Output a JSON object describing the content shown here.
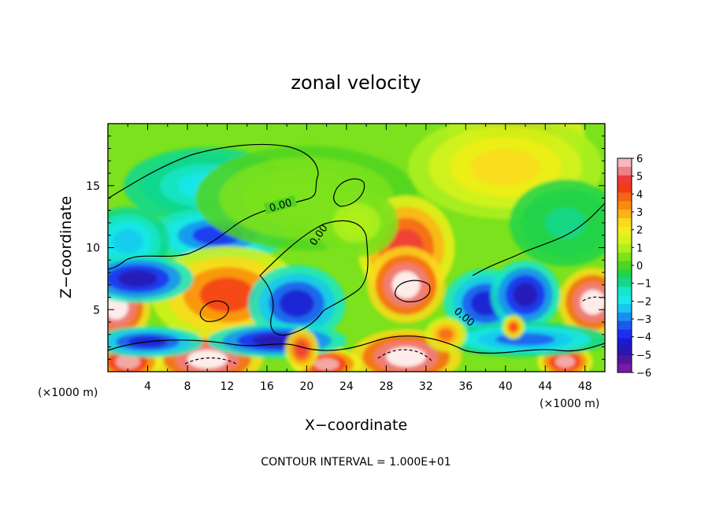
{
  "chart_data": {
    "type": "heatmap",
    "title": "zonal velocity",
    "xlabel": "X−coordinate",
    "ylabel": "Z−coordinate",
    "x_unit_left": "(×1000 m)",
    "x_unit_right": "(×1000 m)",
    "xlim": [
      0,
      50
    ],
    "ylim": [
      0,
      20
    ],
    "x_ticks": [
      4,
      8,
      12,
      16,
      20,
      24,
      28,
      32,
      36,
      40,
      44,
      48
    ],
    "x_tick_labels": [
      "4",
      "8",
      "12",
      "16",
      "20",
      "24",
      "28",
      "32",
      "36",
      "40",
      "44",
      "48"
    ],
    "y_ticks": [
      5,
      10,
      15
    ],
    "y_tick_labels": [
      "5",
      "10",
      "15"
    ],
    "footer": "CONTOUR INTERVAL = 1.000E+01",
    "contour_labels": [
      "0.00",
      "0.00",
      "0.00"
    ],
    "colorbar": {
      "ticks": [
        "6",
        "5",
        "4",
        "3",
        "2",
        "1",
        "0",
        "−1",
        "−2",
        "−3",
        "−4",
        "−5",
        "−6"
      ],
      "range": [
        -6,
        6
      ],
      "colors": [
        {
          "v": 6,
          "c": "#f5b8bc"
        },
        {
          "v": 5.5,
          "c": "#f07f86"
        },
        {
          "v": 5,
          "c": "#ee3a3a"
        },
        {
          "v": 4.5,
          "c": "#f43a14"
        },
        {
          "v": 4,
          "c": "#f56617"
        },
        {
          "v": 3.5,
          "c": "#f98c0f"
        },
        {
          "v": 3,
          "c": "#fcb316"
        },
        {
          "v": 2.5,
          "c": "#fadb1b"
        },
        {
          "v": 2,
          "c": "#f0ee1a"
        },
        {
          "v": 1.5,
          "c": "#d7f21a"
        },
        {
          "v": 1,
          "c": "#aef01c"
        },
        {
          "v": 0.5,
          "c": "#7be21d"
        },
        {
          "v": 0,
          "c": "#4fd41f"
        },
        {
          "v": -0.5,
          "c": "#22d44a"
        },
        {
          "v": -1,
          "c": "#12d78e"
        },
        {
          "v": -1.5,
          "c": "#16e6c8"
        },
        {
          "v": -2,
          "c": "#19e8ec"
        },
        {
          "v": -2.5,
          "c": "#17c8ee"
        },
        {
          "v": -3,
          "c": "#1a8ef0"
        },
        {
          "v": -3.5,
          "c": "#1c58ee"
        },
        {
          "v": -4,
          "c": "#1e2ef0"
        },
        {
          "v": -4.5,
          "c": "#1c1ad0"
        },
        {
          "v": -5,
          "c": "#2a16b0"
        },
        {
          "v": -5.5,
          "c": "#50169e"
        },
        {
          "v": -6,
          "c": "#7a1aa8"
        }
      ]
    },
    "field_blobs": [
      {
        "x": 41,
        "y": 18.8,
        "rx": 5,
        "ry": 2.8,
        "v": 4.6
      },
      {
        "x": 40,
        "y": 16.5,
        "rx": 7,
        "ry": 3,
        "v": 2.5
      },
      {
        "x": 10,
        "y": 15,
        "rx": 6,
        "ry": 2.2,
        "v": -2.2
      },
      {
        "x": 11,
        "y": 11,
        "rx": 5,
        "ry": 1.6,
        "v": -3.8
      },
      {
        "x": 2,
        "y": 10.5,
        "rx": 3,
        "ry": 2,
        "v": -2.5
      },
      {
        "x": 20,
        "y": 14,
        "rx": 8,
        "ry": 3,
        "v": 0.6
      },
      {
        "x": 30,
        "y": 10,
        "rx": 3.5,
        "ry": 3,
        "v": 5.2
      },
      {
        "x": 30,
        "y": 7,
        "rx": 2.8,
        "ry": 2.2,
        "v": 7
      },
      {
        "x": 12,
        "y": 6,
        "rx": 3.5,
        "ry": 2,
        "v": 7
      },
      {
        "x": 12,
        "y": 6.2,
        "rx": 5.5,
        "ry": 2.8,
        "v": 4.5
      },
      {
        "x": 0.8,
        "y": 5.2,
        "rx": 2.5,
        "ry": 2,
        "v": 7
      },
      {
        "x": 48.8,
        "y": 5.6,
        "rx": 2.5,
        "ry": 2,
        "v": 7
      },
      {
        "x": 3,
        "y": 7.5,
        "rx": 4,
        "ry": 1.4,
        "v": -5
      },
      {
        "x": 19,
        "y": 5.5,
        "rx": 3.5,
        "ry": 2.2,
        "v": -4.5
      },
      {
        "x": 38,
        "y": 5.5,
        "rx": 3,
        "ry": 2,
        "v": -4.6
      },
      {
        "x": 42,
        "y": 6.2,
        "rx": 2.5,
        "ry": 2,
        "v": -5
      },
      {
        "x": 30,
        "y": 1.2,
        "rx": 4,
        "ry": 1.6,
        "v": 7
      },
      {
        "x": 10,
        "y": 1,
        "rx": 4,
        "ry": 1.5,
        "v": 7
      },
      {
        "x": 2,
        "y": 0.8,
        "rx": 2.5,
        "ry": 1.2,
        "v": 6
      },
      {
        "x": 22,
        "y": 0.6,
        "rx": 2.5,
        "ry": 1,
        "v": 6
      },
      {
        "x": 46,
        "y": 0.8,
        "rx": 2,
        "ry": 1,
        "v": 6
      },
      {
        "x": 17,
        "y": 2.5,
        "rx": 5,
        "ry": 1,
        "v": -5
      },
      {
        "x": 4,
        "y": 2.4,
        "rx": 4,
        "ry": 0.9,
        "v": -4.5
      },
      {
        "x": 42,
        "y": 2.6,
        "rx": 6,
        "ry": 1,
        "v": -3.5
      },
      {
        "x": 19.5,
        "y": 1.8,
        "rx": 1.2,
        "ry": 1.2,
        "v": 5
      },
      {
        "x": 34,
        "y": 3,
        "rx": 1.5,
        "ry": 1,
        "v": 4
      },
      {
        "x": 40.8,
        "y": 3.6,
        "rx": 0.8,
        "ry": 0.7,
        "v": 4.5
      },
      {
        "x": 25,
        "y": 12,
        "rx": 3,
        "ry": 2,
        "v": 1.2
      },
      {
        "x": 46,
        "y": 12,
        "rx": 4,
        "ry": 2.5,
        "v": -0.8
      }
    ]
  }
}
